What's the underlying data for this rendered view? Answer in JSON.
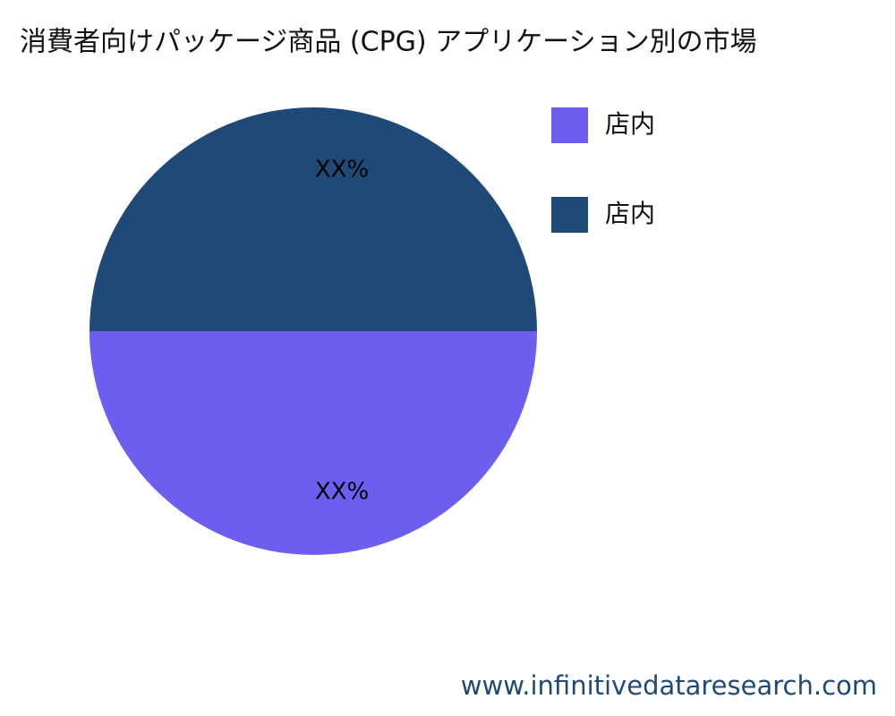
{
  "chart_data": {
    "type": "pie",
    "title": "消費者向けパッケージ商品 (CPG) アプリケーション別の市場",
    "categories": [
      "店内",
      "店内"
    ],
    "values": [
      50,
      50
    ],
    "value_labels": [
      "XX%",
      "XX%"
    ],
    "colors": [
      "#6c5ff0",
      "#1f4a78"
    ]
  },
  "footer": {
    "url": "www.infinitivedataresearch.com"
  }
}
